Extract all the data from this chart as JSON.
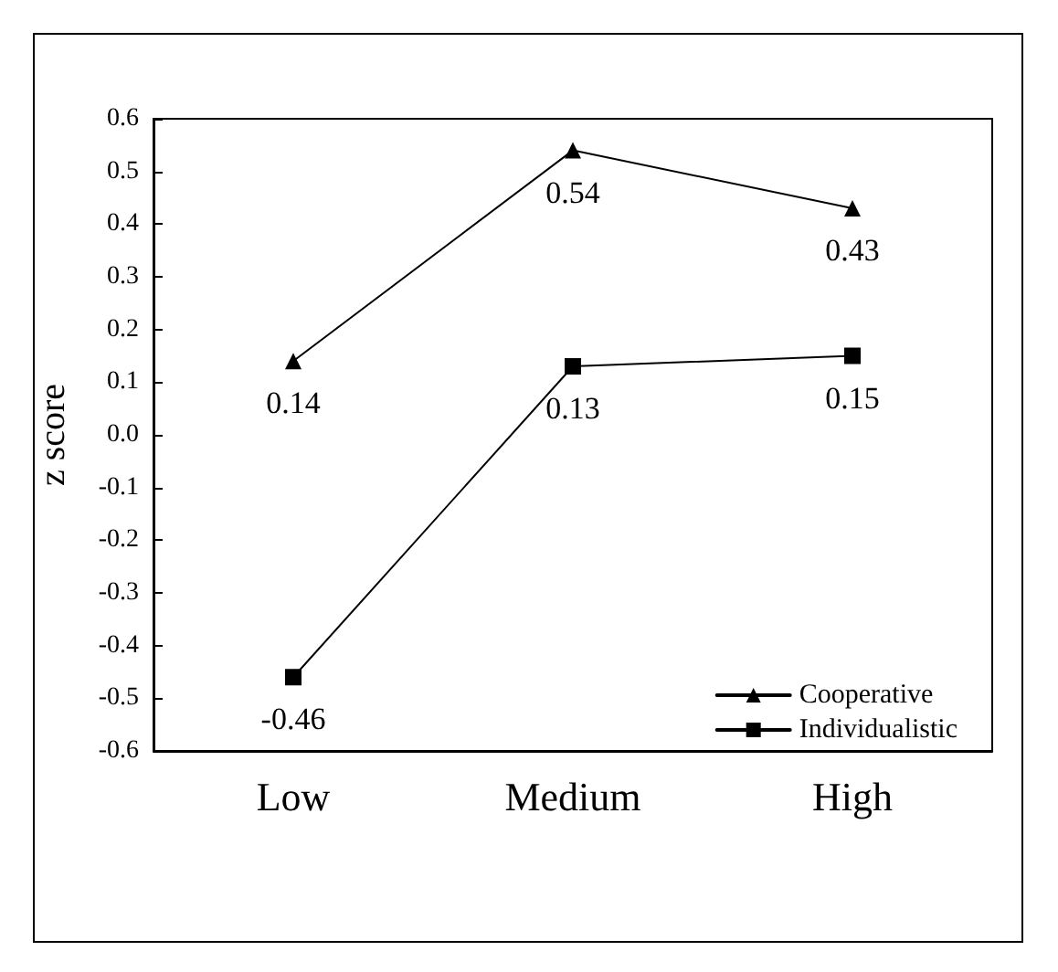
{
  "chart_data": {
    "type": "line",
    "categories": [
      "Low",
      "Medium",
      "High"
    ],
    "ylabel": "z score",
    "ylim": [
      -0.6,
      0.6
    ],
    "yticks": [
      -0.6,
      -0.5,
      -0.4,
      -0.3,
      -0.2,
      -0.1,
      {
        "value": 0,
        "label": "0.0"
      },
      0.1,
      0.2,
      0.3,
      0.4,
      0.5,
      0.6
    ],
    "series": [
      {
        "name": "Cooperative",
        "color": "#000000",
        "marker": "triangle",
        "values": [
          0.14,
          0.54,
          0.43
        ]
      },
      {
        "name": "Individualistic",
        "color": "#000000",
        "marker": "square",
        "values": [
          -0.46,
          0.13,
          0.15
        ]
      }
    ],
    "data_labels": true,
    "legend": "bottom right",
    "grid": false,
    "line_style": "solid"
  }
}
